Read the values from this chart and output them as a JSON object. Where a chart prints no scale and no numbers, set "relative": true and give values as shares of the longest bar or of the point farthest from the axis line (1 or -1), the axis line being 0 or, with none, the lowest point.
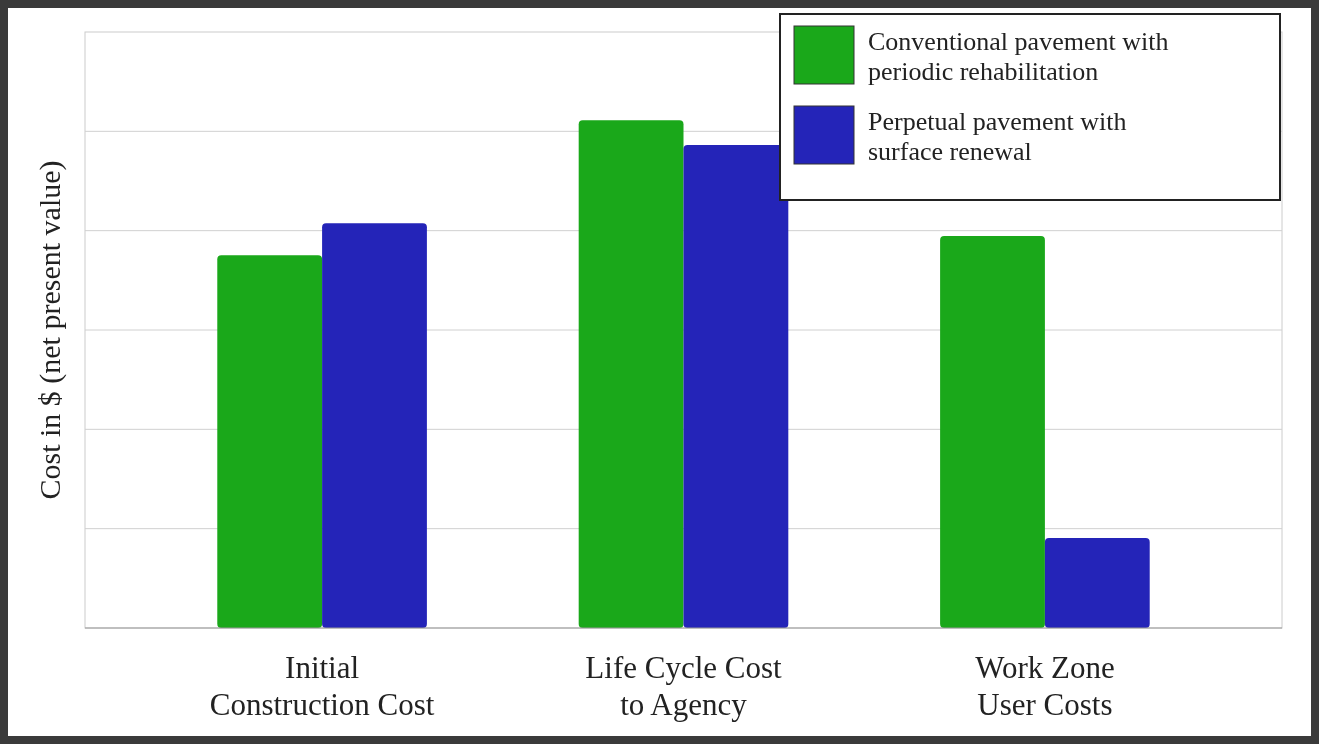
{
  "chart_data": {
    "type": "bar",
    "ylabel": "Cost in $ (net present value)",
    "relative": true,
    "categories": [
      "Initial\nConstruction Cost",
      "Life Cycle Cost\nto Agency",
      "Work Zone\nUser Costs"
    ],
    "series": [
      {
        "name": "Conventional pavement with\nperiodic rehabilitation",
        "color": "#1aa81a",
        "values": [
          0.734,
          1,
          0.772
        ]
      },
      {
        "name": "Perpetual pavement with\nsurface renewal",
        "color": "#2424b8",
        "values": [
          0.797,
          0.951,
          0.177
        ]
      }
    ],
    "grid": "y",
    "legend": "top right"
  }
}
